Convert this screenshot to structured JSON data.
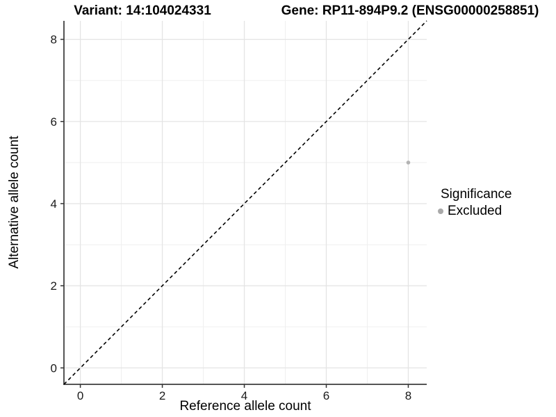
{
  "chart_data": {
    "type": "scatter",
    "title_left": "Variant: 14:104024331",
    "title_right": "Gene: RP11-894P9.2 (ENSG00000258851)",
    "xlabel": "Reference allele count",
    "ylabel": "Alternative allele count",
    "xlim": [
      -0.4,
      8.45
    ],
    "ylim": [
      -0.4,
      8.45
    ],
    "x_ticks": [
      0,
      2,
      4,
      6,
      8
    ],
    "y_ticks": [
      0,
      2,
      4,
      6,
      8
    ],
    "x_minor_gridlines": [
      1,
      3,
      5,
      7
    ],
    "y_minor_gridlines": [
      1,
      3,
      5,
      7
    ],
    "grid": "on",
    "points": [
      {
        "x": 8,
        "y": 5,
        "series": "Excluded"
      }
    ],
    "reference_line": {
      "equation": "y = x",
      "style": "dashed",
      "color": "#000000"
    },
    "legend": {
      "title": "Significance",
      "position": "right",
      "entries": [
        {
          "label": "Excluded",
          "color": "#a9a9a9"
        }
      ]
    },
    "colors": {
      "point": "#b3b3b3",
      "grid_major": "#e4e4e4",
      "grid_minor": "#efefef",
      "axis_line": "#555555",
      "tick_mark": "#333333",
      "tick_label": "#1a1a1a",
      "background": "#ffffff"
    }
  }
}
